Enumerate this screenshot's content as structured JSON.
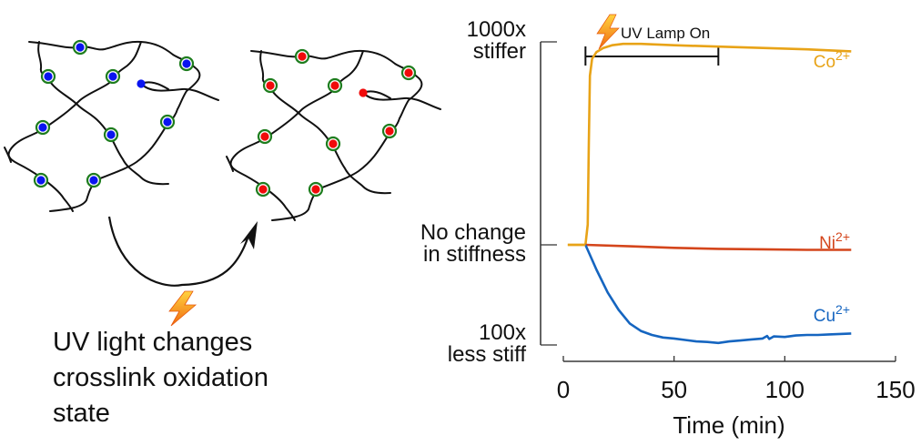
{
  "left_panel": {
    "caption_lines": [
      "UV light changes",
      "crosslink oxidation",
      "state"
    ],
    "before_network": {
      "crosslink_color": "#0a14f0",
      "ring_color": "#1e7d1e"
    },
    "after_network": {
      "crosslink_color": "#f00a0a",
      "ring_color": "#1e7d1e"
    },
    "lightning_icon": "lightning-bolt-icon"
  },
  "chart_data": {
    "type": "line",
    "title": "",
    "xlabel": "Time (min)",
    "ylabel": "",
    "xlim": [
      0,
      150
    ],
    "x_ticks": [
      0,
      50,
      100,
      150
    ],
    "x_tick_labels": [
      "0",
      "50",
      "100",
      "150"
    ],
    "y_scale": "log10 fold change in stiffness",
    "y_ticks": [
      3,
      0,
      -2
    ],
    "y_tick_labels": [
      [
        "1000x",
        "stiffer"
      ],
      [
        "No change",
        "in stiffness"
      ],
      [
        "100x",
        "less stiff"
      ]
    ],
    "annotation": {
      "label": "UV Lamp On",
      "x_start": 10,
      "x_end": 70
    },
    "series": [
      {
        "name": "Co",
        "superscript": "2+",
        "color": "#e8a317",
        "x": [
          2,
          10,
          11,
          11.5,
          12,
          13,
          15,
          18,
          22,
          27,
          35,
          50,
          70,
          90,
          110,
          130
        ],
        "y": [
          0,
          0,
          0.3,
          1.5,
          2.5,
          2.75,
          2.85,
          2.91,
          2.95,
          2.97,
          2.97,
          2.95,
          2.93,
          2.91,
          2.89,
          2.86
        ]
      },
      {
        "name": "Ni",
        "superscript": "2+",
        "color": "#d4451b",
        "x": [
          10,
          30,
          50,
          70,
          90,
          110,
          130
        ],
        "y": [
          0,
          -0.03,
          -0.06,
          -0.08,
          -0.09,
          -0.1,
          -0.1
        ]
      },
      {
        "name": "Cu",
        "superscript": "2+",
        "color": "#1565c0",
        "x": [
          10,
          12,
          15,
          20,
          25,
          30,
          35,
          40,
          45,
          50,
          55,
          60,
          65,
          70,
          75,
          80,
          85,
          90,
          92,
          93,
          95,
          100,
          105,
          110,
          115,
          120,
          125,
          130
        ],
        "y": [
          0,
          -0.2,
          -0.5,
          -0.95,
          -1.3,
          -1.57,
          -1.72,
          -1.8,
          -1.85,
          -1.87,
          -1.9,
          -1.93,
          -1.94,
          -1.96,
          -1.93,
          -1.91,
          -1.89,
          -1.87,
          -1.82,
          -1.88,
          -1.83,
          -1.84,
          -1.81,
          -1.8,
          -1.8,
          -1.79,
          -1.78,
          -1.77
        ]
      }
    ]
  }
}
